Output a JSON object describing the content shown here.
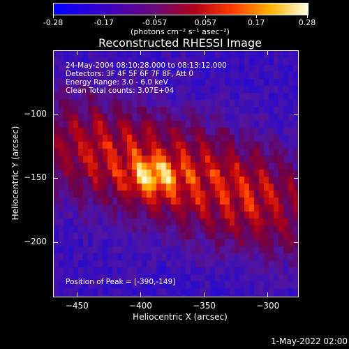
{
  "colorbar": {
    "tick_labels": [
      "-0.28",
      "-0.17",
      "-0.057",
      "0.057",
      "0.17",
      "0.28"
    ],
    "units": "(photons cm⁻² s⁻¹ asec⁻²)"
  },
  "title": "Reconstructed RHESSI Image",
  "info_lines": [
    "24-May-2004 08:10:28.000 to 08:13:12.000",
    "Detectors: 3F 4F 5F 6F 7F 8F, Att 0",
    "Energy Range: 3.0 - 6.0 keV",
    "Clean     Total counts: 3.07E+04"
  ],
  "peak_label": "Position of Peak = [-390,-149]",
  "timestamp": "1-May-2022 02:00",
  "chart_data": {
    "type": "heatmap",
    "title": "Reconstructed RHESSI Image",
    "xlabel": "Heliocentric X (arcsec)",
    "ylabel": "Heliocentric Y (arcsec)",
    "xlim": [
      -468,
      -276
    ],
    "ylim": [
      -243,
      -50
    ],
    "x_ticks": [
      -450,
      -400,
      -350,
      -300
    ],
    "y_ticks": [
      -100,
      -150,
      -200
    ],
    "x_tick_labels": [
      "−450",
      "−400",
      "−350",
      "−300"
    ],
    "y_tick_labels": [
      "−100",
      "−150",
      "−200"
    ],
    "colorbar_range": [
      -0.28,
      0.28
    ],
    "colormap": "blue-purple-red-orange-yellow-white",
    "peak": [
      -390,
      -149
    ],
    "grid": false
  }
}
